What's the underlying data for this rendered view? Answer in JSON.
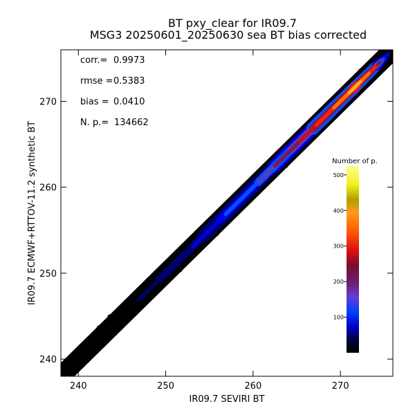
{
  "chart_data": {
    "type": "heatmap",
    "title": "BT pxy_clear for IR09.7",
    "subtitle": "MSG3 20250601_20250630 sea BT bias corrected",
    "xlabel": "IR09.7 SEVIRI BT",
    "ylabel": "IR09.7 ECMWF+RTTOV-11.2 synthetic BT",
    "xlim": [
      238,
      276
    ],
    "ylim": [
      238,
      276
    ],
    "x_ticks": [
      240,
      250,
      260,
      270
    ],
    "y_ticks": [
      240,
      250,
      260,
      270
    ],
    "stats": [
      {
        "label": "corr.=",
        "value": "0.9973"
      },
      {
        "label": "rmse =",
        "value": "0.5383"
      },
      {
        "label": "bias =",
        "value": "0.0410"
      },
      {
        "label": "N. p.=",
        "value": "134662"
      }
    ],
    "density_ridge": {
      "x": [
        238,
        245,
        250,
        255,
        260,
        265,
        268,
        270,
        272,
        274,
        275.5
      ],
      "y": [
        238,
        245,
        250,
        255,
        260,
        265,
        268,
        270,
        272,
        274,
        275.5
      ],
      "half_width_bt": [
        0.9,
        1.0,
        1.0,
        1.0,
        1.0,
        1.0,
        1.0,
        0.95,
        0.9,
        0.8,
        0.6
      ],
      "peak_count": [
        5,
        20,
        50,
        90,
        150,
        260,
        340,
        400,
        480,
        350,
        60
      ]
    },
    "colorbar": {
      "title": "Number of p.",
      "ticks": [
        100,
        200,
        300,
        400,
        500
      ],
      "range": [
        0,
        525
      ]
    }
  }
}
